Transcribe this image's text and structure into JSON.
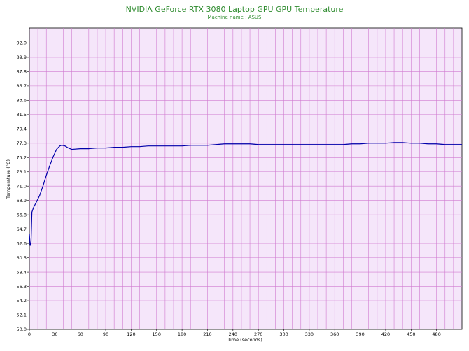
{
  "chart_data": {
    "type": "line",
    "title": "NVIDIA GeForce RTX 3080 Laptop GPU GPU Temperature",
    "subtitle": "Machine name : ASUS",
    "xlabel": "Time (seconds)",
    "ylabel": "Temperature (°C)",
    "xlim": [
      0,
      510
    ],
    "ylim": [
      50.0,
      94.2
    ],
    "x_ticks": [
      "0",
      "30",
      "60",
      "90",
      "120",
      "150",
      "180",
      "210",
      "240",
      "270",
      "300",
      "330",
      "360",
      "390",
      "420",
      "450",
      "480"
    ],
    "x_tick_values": [
      0,
      30,
      60,
      90,
      120,
      150,
      180,
      210,
      240,
      270,
      300,
      330,
      360,
      390,
      420,
      450,
      480
    ],
    "y_ticks": [
      "50.0",
      "52.1",
      "54.2",
      "56.3",
      "58.4",
      "60.5",
      "62.6",
      "64.7",
      "66.8",
      "68.9",
      "71.0",
      "73.1",
      "75.2",
      "77.3",
      "79.4",
      "81.5",
      "83.6",
      "85.7",
      "87.8",
      "89.9",
      "92.0"
    ],
    "y_tick_values": [
      50.0,
      52.1,
      54.2,
      56.3,
      58.4,
      60.5,
      62.6,
      64.7,
      66.8,
      68.9,
      71.0,
      73.1,
      75.2,
      77.3,
      79.4,
      81.5,
      83.6,
      85.7,
      87.8,
      89.9,
      92.0
    ],
    "grid": true,
    "series": [
      {
        "color": "#0000aa",
        "points": [
          [
            0,
            64.0
          ],
          [
            1,
            62.3
          ],
          [
            2,
            62.8
          ],
          [
            3,
            67.2
          ],
          [
            5,
            67.9
          ],
          [
            8,
            68.6
          ],
          [
            12,
            69.6
          ],
          [
            16,
            71.0
          ],
          [
            20,
            72.6
          ],
          [
            24,
            74.0
          ],
          [
            28,
            75.3
          ],
          [
            32,
            76.4
          ],
          [
            36,
            76.9
          ],
          [
            38,
            77.0
          ],
          [
            42,
            76.9
          ],
          [
            46,
            76.6
          ],
          [
            50,
            76.4
          ],
          [
            60,
            76.5
          ],
          [
            70,
            76.5
          ],
          [
            80,
            76.6
          ],
          [
            90,
            76.6
          ],
          [
            100,
            76.7
          ],
          [
            110,
            76.7
          ],
          [
            120,
            76.8
          ],
          [
            130,
            76.8
          ],
          [
            140,
            76.9
          ],
          [
            150,
            76.9
          ],
          [
            160,
            76.9
          ],
          [
            170,
            76.9
          ],
          [
            180,
            76.9
          ],
          [
            190,
            77.0
          ],
          [
            200,
            77.0
          ],
          [
            210,
            77.0
          ],
          [
            220,
            77.1
          ],
          [
            230,
            77.2
          ],
          [
            240,
            77.2
          ],
          [
            250,
            77.2
          ],
          [
            260,
            77.2
          ],
          [
            270,
            77.1
          ],
          [
            280,
            77.1
          ],
          [
            290,
            77.1
          ],
          [
            300,
            77.1
          ],
          [
            310,
            77.1
          ],
          [
            320,
            77.1
          ],
          [
            330,
            77.1
          ],
          [
            340,
            77.1
          ],
          [
            350,
            77.1
          ],
          [
            360,
            77.1
          ],
          [
            370,
            77.1
          ],
          [
            380,
            77.2
          ],
          [
            390,
            77.2
          ],
          [
            400,
            77.3
          ],
          [
            410,
            77.3
          ],
          [
            420,
            77.3
          ],
          [
            430,
            77.4
          ],
          [
            440,
            77.4
          ],
          [
            450,
            77.3
          ],
          [
            460,
            77.3
          ],
          [
            470,
            77.2
          ],
          [
            480,
            77.2
          ],
          [
            490,
            77.1
          ],
          [
            500,
            77.1
          ],
          [
            510,
            77.1
          ]
        ]
      }
    ]
  },
  "colors": {
    "plot_background": "#f5e6fa",
    "grid": "#d07ad0",
    "title": "#2e8b2e",
    "series": "#0000aa"
  }
}
